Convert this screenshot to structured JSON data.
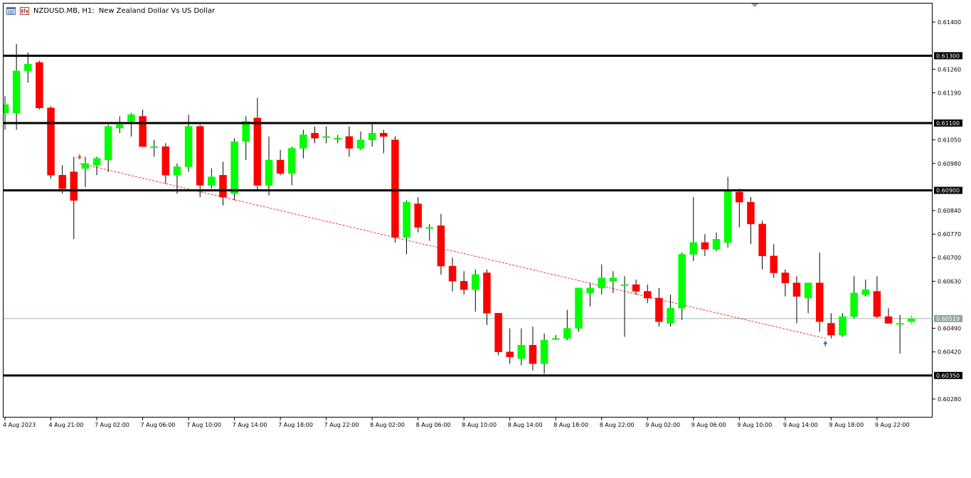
{
  "header": {
    "symbol": "NZDUSD.MB, H1:",
    "description": "New Zealand Dollar Vs US Dollar",
    "icons": [
      "chart-window-icon",
      "chart-type-icon"
    ]
  },
  "colors": {
    "bull": "#00ff00",
    "bear": "#ff0000",
    "outline": "#000000",
    "trendline": "#ff0000",
    "level_line": "#000000",
    "price_line": "#7f9f8f",
    "price_label_bg": "#000000",
    "price_label_text": "#ffffff",
    "current_label_bg": "#8fa89a"
  },
  "chart_data": {
    "type": "candlestick",
    "title": "NZDUSD.MB, H1: New Zealand Dollar Vs US Dollar",
    "xlabel": "",
    "ylabel": "",
    "ylim": [
      0.60225,
      0.61455
    ],
    "grid": false,
    "y_ticks": [
      "0.60280",
      "0.60420",
      "0.60490",
      "0.60630",
      "0.60700",
      "0.60770",
      "0.60840",
      "0.60980",
      "0.61050",
      "0.61190",
      "0.61260",
      "0.61400"
    ],
    "x_ticks": [
      "4 Aug 2023",
      "4 Aug 21:00",
      "7 Aug 02:00",
      "7 Aug 06:00",
      "7 Aug 10:00",
      "7 Aug 14:00",
      "7 Aug 18:00",
      "7 Aug 22:00",
      "8 Aug 02:00",
      "8 Aug 06:00",
      "8 Aug 10:00",
      "8 Aug 14:00",
      "8 Aug 18:00",
      "8 Aug 22:00",
      "9 Aug 02:00",
      "9 Aug 06:00",
      "9 Aug 10:00",
      "9 Aug 14:00",
      "9 Aug 18:00",
      "9 Aug 22:00"
    ],
    "x_tick_index": [
      0,
      4,
      8,
      12,
      16,
      20,
      24,
      28,
      32,
      36,
      40,
      44,
      48,
      52,
      56,
      60,
      64,
      68,
      72,
      76
    ],
    "horizontal_levels": [
      {
        "price": 0.613,
        "label": "0.61300"
      },
      {
        "price": 0.611,
        "label": "0.61100"
      },
      {
        "price": 0.609,
        "label": "0.60900"
      },
      {
        "price": 0.6035,
        "label": "0.60350"
      }
    ],
    "current_price": {
      "price": 0.60519,
      "label": "0.60519"
    },
    "trendline": {
      "from": {
        "index": 6.5,
        "price": 0.6098
      },
      "to": {
        "index": 71.5,
        "price": 0.6046
      }
    },
    "markers": [
      {
        "index": 6.5,
        "price": 0.60995,
        "kind": "sell-arrow"
      },
      {
        "index": 71.5,
        "price": 0.60445,
        "kind": "buy-arrow"
      }
    ],
    "candles": [
      {
        "o": 0.6113,
        "h": 0.6118,
        "l": 0.6108,
        "c": 0.61155
      },
      {
        "o": 0.6113,
        "h": 0.61335,
        "l": 0.6108,
        "c": 0.61255
      },
      {
        "o": 0.61255,
        "h": 0.6131,
        "l": 0.6122,
        "c": 0.61275
      },
      {
        "o": 0.6128,
        "h": 0.61285,
        "l": 0.6114,
        "c": 0.61145
      },
      {
        "o": 0.61145,
        "h": 0.6115,
        "l": 0.60935,
        "c": 0.60945
      },
      {
        "o": 0.60945,
        "h": 0.60975,
        "l": 0.6089,
        "c": 0.60905
      },
      {
        "o": 0.60955,
        "h": 0.61,
        "l": 0.60755,
        "c": 0.6087
      },
      {
        "o": 0.60965,
        "h": 0.61,
        "l": 0.6091,
        "c": 0.6098
      },
      {
        "o": 0.60975,
        "h": 0.61,
        "l": 0.60945,
        "c": 0.60995
      },
      {
        "o": 0.6099,
        "h": 0.61095,
        "l": 0.60955,
        "c": 0.6109
      },
      {
        "o": 0.61085,
        "h": 0.6112,
        "l": 0.6107,
        "c": 0.61095
      },
      {
        "o": 0.61105,
        "h": 0.6113,
        "l": 0.6106,
        "c": 0.61125
      },
      {
        "o": 0.6112,
        "h": 0.6114,
        "l": 0.6103,
        "c": 0.6103
      },
      {
        "o": 0.6103,
        "h": 0.6105,
        "l": 0.61,
        "c": 0.6103
      },
      {
        "o": 0.6103,
        "h": 0.6104,
        "l": 0.6092,
        "c": 0.60945
      },
      {
        "o": 0.60945,
        "h": 0.6098,
        "l": 0.6089,
        "c": 0.6097
      },
      {
        "o": 0.6097,
        "h": 0.61125,
        "l": 0.60955,
        "c": 0.6109
      },
      {
        "o": 0.6109,
        "h": 0.61095,
        "l": 0.6088,
        "c": 0.60915
      },
      {
        "o": 0.60915,
        "h": 0.60965,
        "l": 0.60905,
        "c": 0.6094
      },
      {
        "o": 0.60945,
        "h": 0.60985,
        "l": 0.60855,
        "c": 0.6088
      },
      {
        "o": 0.6089,
        "h": 0.61055,
        "l": 0.6087,
        "c": 0.61045
      },
      {
        "o": 0.61045,
        "h": 0.6112,
        "l": 0.6099,
        "c": 0.61105
      },
      {
        "o": 0.61115,
        "h": 0.61175,
        "l": 0.609,
        "c": 0.60915
      },
      {
        "o": 0.60915,
        "h": 0.6106,
        "l": 0.60885,
        "c": 0.6099
      },
      {
        "o": 0.6099,
        "h": 0.6102,
        "l": 0.60945,
        "c": 0.6095
      },
      {
        "o": 0.6095,
        "h": 0.6103,
        "l": 0.60915,
        "c": 0.61025
      },
      {
        "o": 0.61025,
        "h": 0.6108,
        "l": 0.60995,
        "c": 0.61065
      },
      {
        "o": 0.6107,
        "h": 0.6109,
        "l": 0.6104,
        "c": 0.61055
      },
      {
        "o": 0.6106,
        "h": 0.6109,
        "l": 0.6104,
        "c": 0.6106
      },
      {
        "o": 0.61055,
        "h": 0.61065,
        "l": 0.6104,
        "c": 0.61055
      },
      {
        "o": 0.6106,
        "h": 0.6109,
        "l": 0.61,
        "c": 0.61025
      },
      {
        "o": 0.61025,
        "h": 0.61075,
        "l": 0.6102,
        "c": 0.6105
      },
      {
        "o": 0.6105,
        "h": 0.611,
        "l": 0.6103,
        "c": 0.6107
      },
      {
        "o": 0.6107,
        "h": 0.6108,
        "l": 0.6101,
        "c": 0.6106
      },
      {
        "o": 0.6105,
        "h": 0.6106,
        "l": 0.60745,
        "c": 0.6076
      },
      {
        "o": 0.6076,
        "h": 0.6087,
        "l": 0.6071,
        "c": 0.60865
      },
      {
        "o": 0.6086,
        "h": 0.6088,
        "l": 0.60775,
        "c": 0.6079
      },
      {
        "o": 0.6079,
        "h": 0.608,
        "l": 0.6075,
        "c": 0.6079
      },
      {
        "o": 0.60795,
        "h": 0.6083,
        "l": 0.6065,
        "c": 0.60675
      },
      {
        "o": 0.60675,
        "h": 0.607,
        "l": 0.606,
        "c": 0.6063
      },
      {
        "o": 0.6063,
        "h": 0.6066,
        "l": 0.6059,
        "c": 0.60605
      },
      {
        "o": 0.60605,
        "h": 0.60665,
        "l": 0.6054,
        "c": 0.6065
      },
      {
        "o": 0.60655,
        "h": 0.60665,
        "l": 0.605,
        "c": 0.60535
      },
      {
        "o": 0.60535,
        "h": 0.60535,
        "l": 0.6041,
        "c": 0.6042
      },
      {
        "o": 0.6042,
        "h": 0.6049,
        "l": 0.60385,
        "c": 0.60405
      },
      {
        "o": 0.604,
        "h": 0.6049,
        "l": 0.6038,
        "c": 0.6044
      },
      {
        "o": 0.6044,
        "h": 0.60495,
        "l": 0.60365,
        "c": 0.60385
      },
      {
        "o": 0.60385,
        "h": 0.60475,
        "l": 0.60355,
        "c": 0.60455
      },
      {
        "o": 0.6046,
        "h": 0.6047,
        "l": 0.60455,
        "c": 0.6046
      },
      {
        "o": 0.6046,
        "h": 0.60545,
        "l": 0.60455,
        "c": 0.6049
      },
      {
        "o": 0.6049,
        "h": 0.6061,
        "l": 0.6048,
        "c": 0.6061
      },
      {
        "o": 0.60595,
        "h": 0.60625,
        "l": 0.60555,
        "c": 0.6061
      },
      {
        "o": 0.6061,
        "h": 0.6068,
        "l": 0.6059,
        "c": 0.6064
      },
      {
        "o": 0.6063,
        "h": 0.6066,
        "l": 0.60595,
        "c": 0.6064
      },
      {
        "o": 0.6062,
        "h": 0.60645,
        "l": 0.60465,
        "c": 0.6062
      },
      {
        "o": 0.6062,
        "h": 0.60635,
        "l": 0.6059,
        "c": 0.606
      },
      {
        "o": 0.606,
        "h": 0.6062,
        "l": 0.60565,
        "c": 0.6058
      },
      {
        "o": 0.6058,
        "h": 0.6061,
        "l": 0.60495,
        "c": 0.6051
      },
      {
        "o": 0.60505,
        "h": 0.6059,
        "l": 0.60495,
        "c": 0.6055
      },
      {
        "o": 0.6055,
        "h": 0.60715,
        "l": 0.60515,
        "c": 0.6071
      },
      {
        "o": 0.6071,
        "h": 0.6088,
        "l": 0.6069,
        "c": 0.60745
      },
      {
        "o": 0.60745,
        "h": 0.6077,
        "l": 0.60705,
        "c": 0.60725
      },
      {
        "o": 0.60725,
        "h": 0.60775,
        "l": 0.6072,
        "c": 0.60755
      },
      {
        "o": 0.60745,
        "h": 0.6094,
        "l": 0.6073,
        "c": 0.609
      },
      {
        "o": 0.60895,
        "h": 0.60905,
        "l": 0.6079,
        "c": 0.60865
      },
      {
        "o": 0.60865,
        "h": 0.6088,
        "l": 0.6074,
        "c": 0.608
      },
      {
        "o": 0.608,
        "h": 0.6081,
        "l": 0.60665,
        "c": 0.60705
      },
      {
        "o": 0.60705,
        "h": 0.6074,
        "l": 0.6064,
        "c": 0.60655
      },
      {
        "o": 0.60655,
        "h": 0.60665,
        "l": 0.60585,
        "c": 0.60625
      },
      {
        "o": 0.60625,
        "h": 0.60645,
        "l": 0.60505,
        "c": 0.60585
      },
      {
        "o": 0.6058,
        "h": 0.60625,
        "l": 0.60535,
        "c": 0.60625
      },
      {
        "o": 0.60625,
        "h": 0.60715,
        "l": 0.6048,
        "c": 0.6051
      },
      {
        "o": 0.60505,
        "h": 0.60535,
        "l": 0.6046,
        "c": 0.6047
      },
      {
        "o": 0.6047,
        "h": 0.60535,
        "l": 0.60465,
        "c": 0.60525
      },
      {
        "o": 0.60525,
        "h": 0.60645,
        "l": 0.6052,
        "c": 0.60595
      },
      {
        "o": 0.6059,
        "h": 0.60635,
        "l": 0.60585,
        "c": 0.60605
      },
      {
        "o": 0.606,
        "h": 0.60645,
        "l": 0.6052,
        "c": 0.60525
      },
      {
        "o": 0.60525,
        "h": 0.6055,
        "l": 0.60505,
        "c": 0.60505
      },
      {
        "o": 0.60505,
        "h": 0.6053,
        "l": 0.60415,
        "c": 0.60505
      },
      {
        "o": 0.6051,
        "h": 0.6053,
        "l": 0.605,
        "c": 0.60519
      }
    ]
  }
}
